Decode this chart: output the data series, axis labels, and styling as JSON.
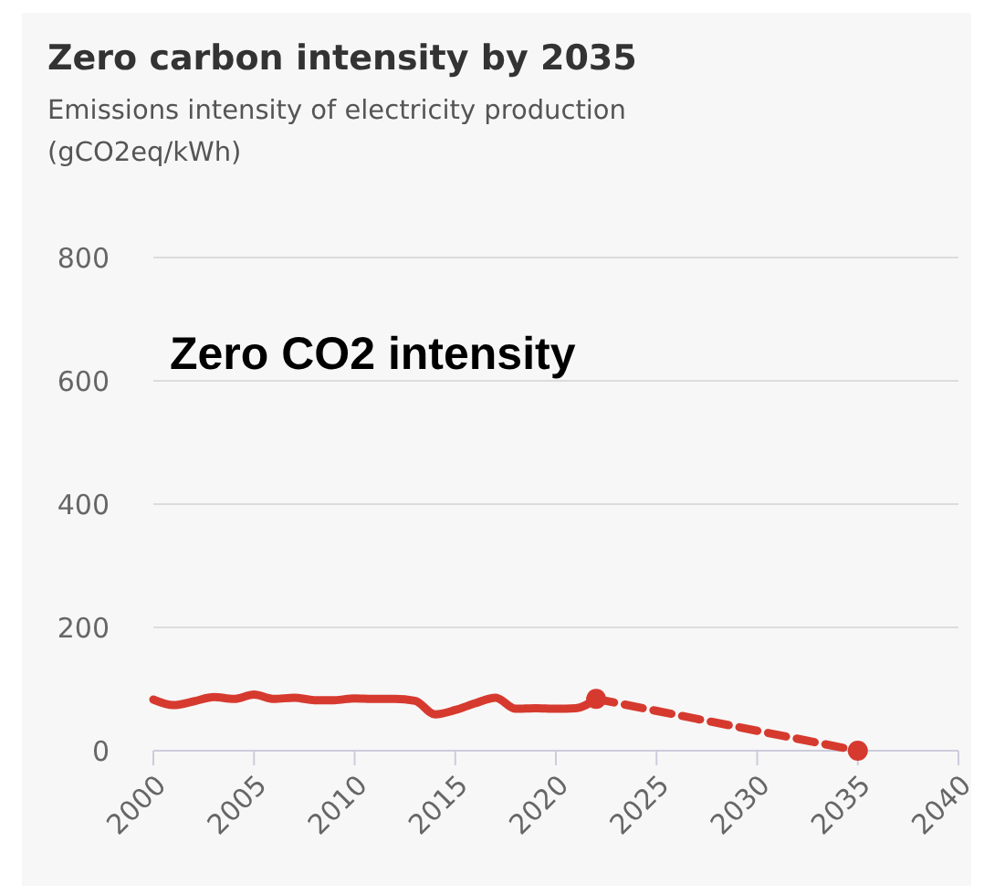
{
  "chart_data": {
    "type": "line",
    "title": "Zero carbon intensity by 2035",
    "subtitle": "Emissions intensity of electricity production (gCO2eq/kWh)",
    "annotations": [
      "Zero CO2 intensity"
    ],
    "series": [
      {
        "color": "#d63a2f",
        "x": [
          2000,
          2001,
          2002,
          2003,
          2004,
          2005,
          2006,
          2007,
          2008,
          2009,
          2010,
          2011,
          2012,
          2013,
          2014,
          2015,
          2016,
          2017,
          2018,
          2019,
          2020,
          2021,
          2022
        ],
        "values": [
          83,
          74,
          80,
          87,
          84,
          91,
          84,
          86,
          82,
          82,
          85,
          84,
          84,
          81,
          59,
          66,
          77,
          86,
          68,
          69,
          68,
          69,
          84
        ],
        "line_style": "solid",
        "marker": "none"
      },
      {
        "color": "#d63a2f",
        "x": [
          2022,
          2035
        ],
        "values": [
          84,
          0
        ],
        "line_style": "dashed",
        "marker": "circle"
      }
    ],
    "xlim": [
      2000,
      2040
    ],
    "xticks": [
      2000,
      2005,
      2010,
      2015,
      2020,
      2025,
      2030,
      2035,
      2040
    ],
    "ylim": [
      0,
      800
    ],
    "yticks": [
      0,
      200,
      400,
      600,
      800
    ],
    "grid": "y"
  }
}
